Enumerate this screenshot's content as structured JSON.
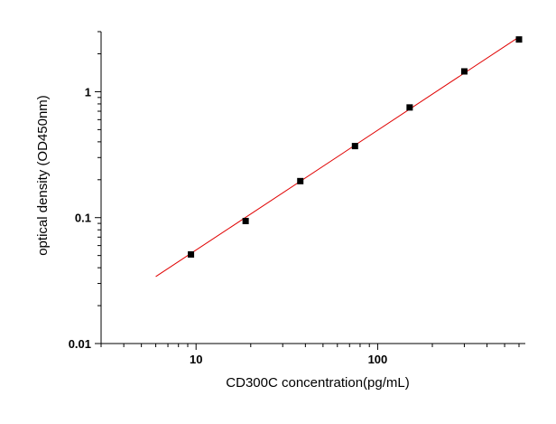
{
  "chart_data": {
    "type": "scatter",
    "title": "",
    "xlabel": "CD300C  concentration(pg/mL)",
    "ylabel": "optical density (OD450nm)",
    "x_scale": "log",
    "y_scale": "log",
    "xlim": [
      3,
      650
    ],
    "ylim": [
      0.01,
      3.0
    ],
    "grid": false,
    "x_ticks": [
      {
        "value": 10,
        "label": "10"
      },
      {
        "value": 100,
        "label": "100"
      }
    ],
    "y_ticks": [
      {
        "value": 0.01,
        "label": "0.01"
      },
      {
        "value": 0.1,
        "label": "0.1"
      },
      {
        "value": 1,
        "label": "1"
      }
    ],
    "series": [
      {
        "x": [
          9.375,
          18.75,
          37.5,
          75,
          150,
          300,
          600
        ],
        "y": [
          0.051,
          0.094,
          0.195,
          0.37,
          0.75,
          1.45,
          2.6
        ]
      }
    ],
    "fit_line": {
      "x": [
        6,
        600
      ],
      "y": [
        0.034,
        2.72
      ],
      "color": "#e00000"
    },
    "marker_color": "#000000"
  }
}
